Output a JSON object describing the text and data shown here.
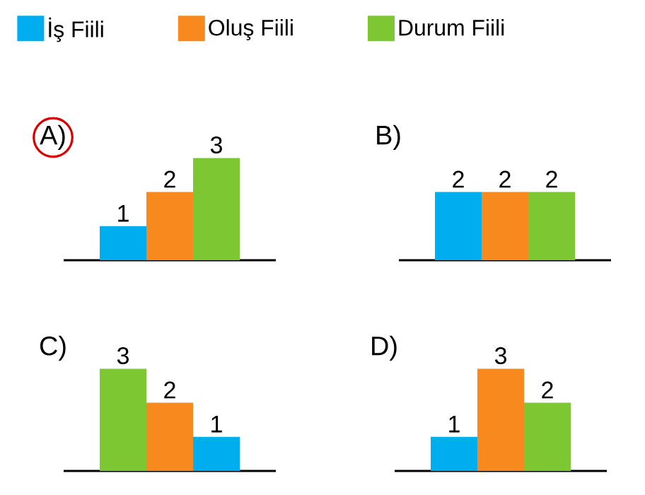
{
  "chart_data": [
    {
      "type": "bar",
      "title": "A)",
      "categories": [
        null
      ],
      "data_labels": true,
      "legend": "top",
      "series": [
        {
          "name": "İş Fiili",
          "color": "#00aeef",
          "values": [
            1
          ]
        },
        {
          "name": "Oluş Fiili",
          "color": "#f7891f",
          "values": [
            2
          ]
        },
        {
          "name": "Durum Fiili",
          "color": "#7dc832",
          "values": [
            3
          ]
        }
      ]
    },
    {
      "type": "bar",
      "title": "B)",
      "categories": [
        null
      ],
      "data_labels": true,
      "series": [
        {
          "color": "#00aeef",
          "values": [
            2
          ]
        },
        {
          "color": "#f7891f",
          "values": [
            2
          ]
        },
        {
          "color": "#7dc832",
          "values": [
            2
          ]
        }
      ]
    },
    {
      "type": "bar",
      "title": "C)",
      "categories": [
        null
      ],
      "data_labels": true,
      "series": [
        {
          "color": "#7dc832",
          "values": [
            3
          ]
        },
        {
          "color": "#f7891f",
          "values": [
            2
          ]
        },
        {
          "color": "#00aeef",
          "values": [
            1
          ]
        }
      ]
    },
    {
      "type": "bar",
      "title": "D)",
      "categories": [
        null
      ],
      "data_labels": true,
      "series": [
        {
          "color": "#00aeef",
          "values": [
            1
          ]
        },
        {
          "color": "#f7891f",
          "values": [
            3
          ]
        },
        {
          "color": "#7dc832",
          "values": [
            2
          ]
        }
      ]
    }
  ]
}
